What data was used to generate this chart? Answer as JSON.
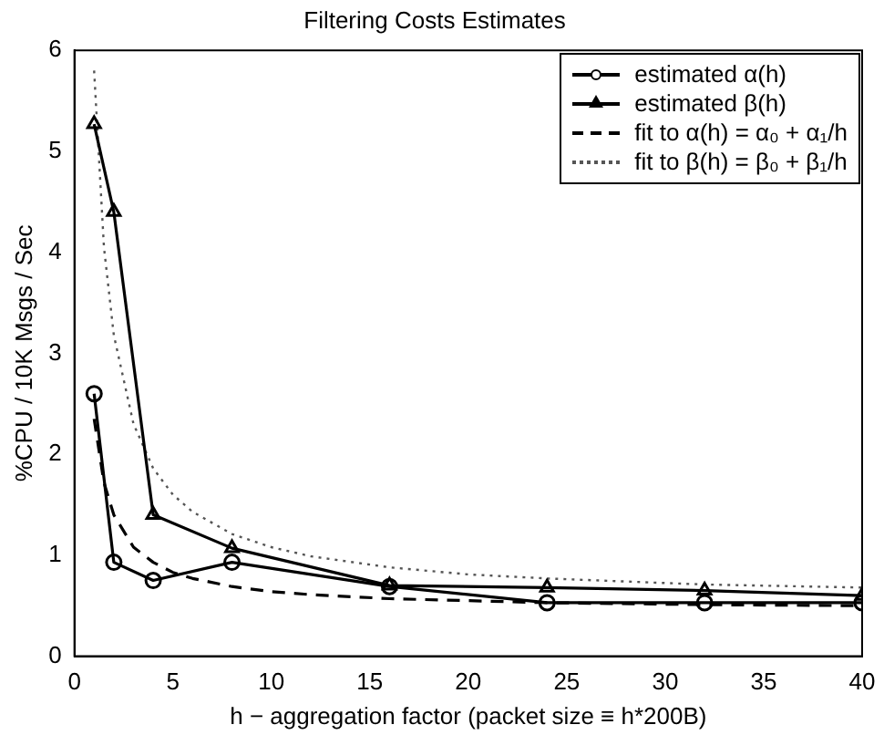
{
  "chart_data": {
    "type": "line",
    "title": "Filtering Costs Estimates",
    "xlabel": "h − aggregation factor (packet size ≡ h*200B)",
    "ylabel": "%CPU / 10K Msgs / Sec",
    "xlim": [
      0,
      40
    ],
    "xticks": [
      0,
      5,
      10,
      15,
      20,
      25,
      30,
      35,
      40
    ],
    "ylim": [
      0,
      6
    ],
    "yticks": [
      0,
      1,
      2,
      3,
      4,
      5,
      6
    ],
    "grid": false,
    "legend": "top right",
    "series": [
      {
        "name": "estimated  α(h)",
        "color": "#000000",
        "marker": "circle",
        "line_style": "solid",
        "x": [
          1,
          2,
          4,
          8,
          16,
          24,
          32,
          40
        ],
        "values": [
          2.6,
          0.93,
          0.75,
          0.93,
          0.69,
          0.53,
          0.53,
          0.53
        ]
      },
      {
        "name": "estimated  β(h)",
        "color": "#000000",
        "marker": "triangle",
        "line_style": "solid",
        "x": [
          1,
          2,
          4,
          8,
          16,
          24,
          32,
          40
        ],
        "values": [
          5.27,
          4.4,
          1.4,
          1.07,
          0.7,
          0.68,
          0.65,
          0.6
        ]
      },
      {
        "name": "fit to  α(h) = α₀ + α₁/h",
        "color": "#000000",
        "marker": "none",
        "line_style": "dashed",
        "x": [
          1,
          1.5,
          2,
          3,
          4,
          5,
          6,
          8,
          10,
          12,
          16,
          20,
          24,
          32,
          40
        ],
        "values": [
          2.35,
          1.72,
          1.4,
          1.08,
          0.93,
          0.83,
          0.77,
          0.69,
          0.64,
          0.61,
          0.57,
          0.55,
          0.53,
          0.51,
          0.5
        ]
      },
      {
        "name": "fit to  β(h) = β₀ + β₁/h",
        "color": "#555555",
        "marker": "none",
        "line_style": "dotted",
        "x": [
          1,
          1.5,
          2,
          3,
          4,
          5,
          6,
          8,
          10,
          12,
          16,
          20,
          24,
          32,
          40
        ],
        "values": [
          5.8,
          4.05,
          3.18,
          2.3,
          1.86,
          1.6,
          1.43,
          1.21,
          1.08,
          0.99,
          0.88,
          0.81,
          0.77,
          0.71,
          0.68
        ]
      }
    ]
  }
}
